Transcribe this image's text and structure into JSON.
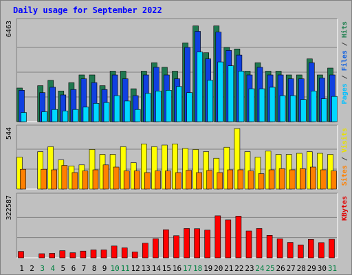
{
  "chart_data": {
    "type": "bar",
    "title": "Daily usage for September 2022",
    "categories": [
      "1",
      "2",
      "3",
      "4",
      "5",
      "6",
      "7",
      "8",
      "9",
      "10",
      "11",
      "12",
      "13",
      "14",
      "15",
      "16",
      "17",
      "18",
      "19",
      "20",
      "21",
      "22",
      "23",
      "24",
      "25",
      "26",
      "27",
      "28",
      "29",
      "30",
      "31"
    ],
    "weekend_days": [
      "3",
      "4",
      "10",
      "11",
      "17",
      "18",
      "24",
      "25",
      "31"
    ],
    "panels": [
      {
        "id": "hits",
        "ymax_label": "6463",
        "ymax": 6463,
        "axis_title_parts": [
          {
            "text": "Pages",
            "color": "#00c0ff"
          },
          {
            "text": " / ",
            "color": "#404040"
          },
          {
            "text": "Files",
            "color": "#1060e0"
          },
          {
            "text": " / ",
            "color": "#404040"
          },
          {
            "text": "Hits",
            "color": "#208050"
          }
        ],
        "series": [
          {
            "name": "Hits",
            "color": "#207850",
            "values": [
              2200,
              0,
              2350,
              2700,
              2000,
              2550,
              3050,
              3050,
              2350,
              3300,
              3300,
              2150,
              3300,
              3850,
              3550,
              3300,
              5150,
              6250,
              4500,
              6250,
              4850,
              4750,
              3300,
              3850,
              3300,
              3300,
              3050,
              3050,
              4100,
              3050,
              3500
            ]
          },
          {
            "name": "Files",
            "color": "#1040e0",
            "values": [
              2050,
              0,
              1900,
              2250,
              1750,
              2100,
              2800,
              2550,
              2100,
              3050,
              2800,
              1700,
              3050,
              3550,
              3050,
              2800,
              4850,
              5900,
              4100,
              5850,
              4650,
              4350,
              3050,
              3550,
              3050,
              3050,
              2800,
              2800,
              3850,
              2850,
              3050
            ]
          },
          {
            "name": "Pages",
            "color": "#00d8ff",
            "values": [
              600,
              0,
              650,
              800,
              700,
              800,
              950,
              1200,
              1250,
              1700,
              1350,
              800,
              1850,
              2000,
              2050,
              2300,
              1900,
              4550,
              2700,
              3900,
              3650,
              3300,
              2150,
              2150,
              2250,
              1700,
              1700,
              1450,
              2000,
              1500,
              1650
            ]
          }
        ]
      },
      {
        "id": "visits",
        "ymax_label": "544",
        "ymax": 544,
        "axis_title_parts": [
          {
            "text": "Sites",
            "color": "#ff8000"
          },
          {
            "text": " / ",
            "color": "#404040"
          },
          {
            "text": "Visits",
            "color": "#e8e000"
          }
        ],
        "series": [
          {
            "name": "Visits",
            "color": "#ffff00",
            "values": [
              290,
              0,
              340,
              385,
              265,
              210,
              220,
              360,
              315,
              315,
              385,
              240,
              410,
              385,
              400,
              410,
              370,
              360,
              340,
              280,
              380,
              550,
              340,
              290,
              345,
              315,
              315,
              325,
              340,
              325,
              315
            ]
          },
          {
            "name": "Sites",
            "color": "#ff8000",
            "values": [
              180,
              0,
              180,
              175,
              215,
              150,
              165,
              175,
              220,
              200,
              165,
              165,
              150,
              165,
              165,
              150,
              170,
              150,
              170,
              150,
              175,
              175,
              165,
              140,
              175,
              185,
              175,
              185,
              200,
              175,
              165
            ]
          }
        ]
      },
      {
        "id": "kbytes",
        "ymax_label": "322587",
        "ymax": 322587,
        "axis_title_parts": [
          {
            "text": "KBytes",
            "color": "#e00000"
          }
        ],
        "series": [
          {
            "name": "KBytes",
            "color": "#ff0000",
            "values": [
              34000,
              0,
              22000,
              24000,
              38000,
              27000,
              36000,
              42000,
              42000,
              63000,
              53000,
              31000,
              78000,
              102000,
              150000,
              118000,
              156000,
              155000,
              148000,
              224000,
              202000,
              222000,
              143000,
              156000,
              120000,
              101000,
              82000,
              69000,
              98000,
              81000,
              99000
            ]
          }
        ]
      }
    ],
    "grid": true,
    "legend": "right"
  }
}
